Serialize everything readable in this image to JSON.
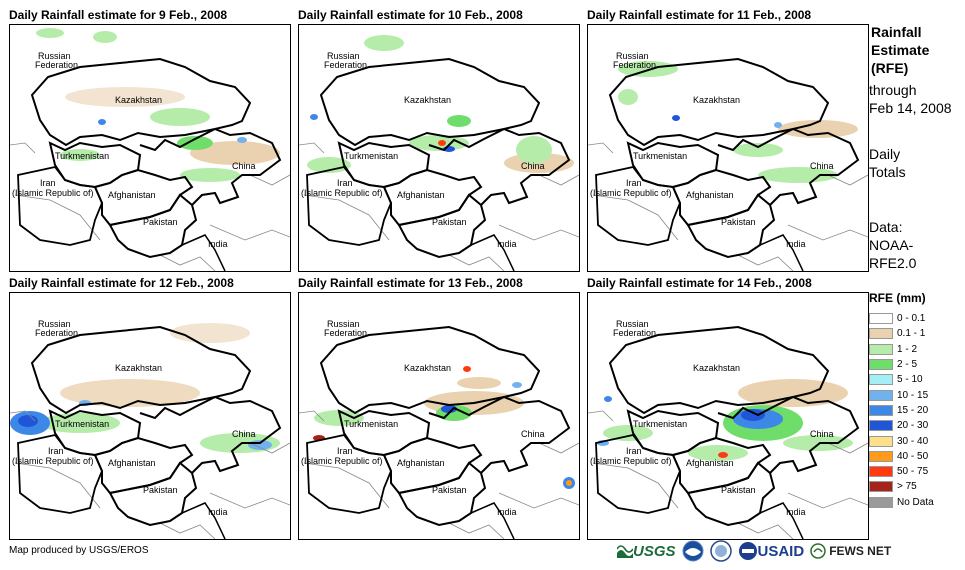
{
  "panels": [
    {
      "title": "Daily Rainfall estimate for 9 Feb., 2008"
    },
    {
      "title": "Daily Rainfall estimate for 10 Feb., 2008"
    },
    {
      "title": "Daily Rainfall estimate for 11 Feb., 2008"
    },
    {
      "title": "Daily Rainfall estimate for 12 Feb., 2008"
    },
    {
      "title": "Daily Rainfall estimate for 13 Feb., 2008"
    },
    {
      "title": "Daily Rainfall estimate for 14 Feb., 2008"
    }
  ],
  "map_labels": {
    "russia_1": "Russian",
    "russia_2": "Federation",
    "kazakhstan": "Kazakhstan",
    "turkmenistan": "Turkmenistan",
    "china": "China",
    "iran_1": "Iran",
    "iran_2": "(Islamic Republic of)",
    "afghanistan": "Afghanistan",
    "pakistan": "Pakistan",
    "india": "India"
  },
  "sidebar": {
    "title_1": "Rainfall",
    "title_2": "Estimate",
    "title_3": "(RFE)",
    "through": "through",
    "date": "Feb 14, 2008",
    "daily": "Daily",
    "totals": "Totals",
    "data": "Data:",
    "source_1": "NOAA-",
    "source_2": "RFE2.0"
  },
  "legend": {
    "title": "RFE (mm)",
    "items": [
      {
        "label": "0 - 0.1",
        "color": "#ffffff"
      },
      {
        "label": "0.1 - 1",
        "color": "#ead2b0"
      },
      {
        "label": "1 - 2",
        "color": "#b6ecaa"
      },
      {
        "label": "2 - 5",
        "color": "#6fdd6a"
      },
      {
        "label": "5 - 10",
        "color": "#a6eef5"
      },
      {
        "label": "10 - 15",
        "color": "#6fb2ee"
      },
      {
        "label": "15 - 20",
        "color": "#3d88e6"
      },
      {
        "label": "20 - 30",
        "color": "#1f56d8"
      },
      {
        "label": "30 - 40",
        "color": "#ffe08a"
      },
      {
        "label": "40 - 50",
        "color": "#ff9a1a"
      },
      {
        "label": "50 - 75",
        "color": "#ff3a10"
      },
      {
        "label": "> 75",
        "color": "#a4241a"
      },
      {
        "label": "No Data",
        "color": "#9a9a9a"
      }
    ]
  },
  "footer": {
    "credit": "Map produced by USGS/EROS",
    "logos": {
      "usgs": "USGS",
      "usaid": "USAID",
      "fews": "FEWS NET"
    }
  }
}
